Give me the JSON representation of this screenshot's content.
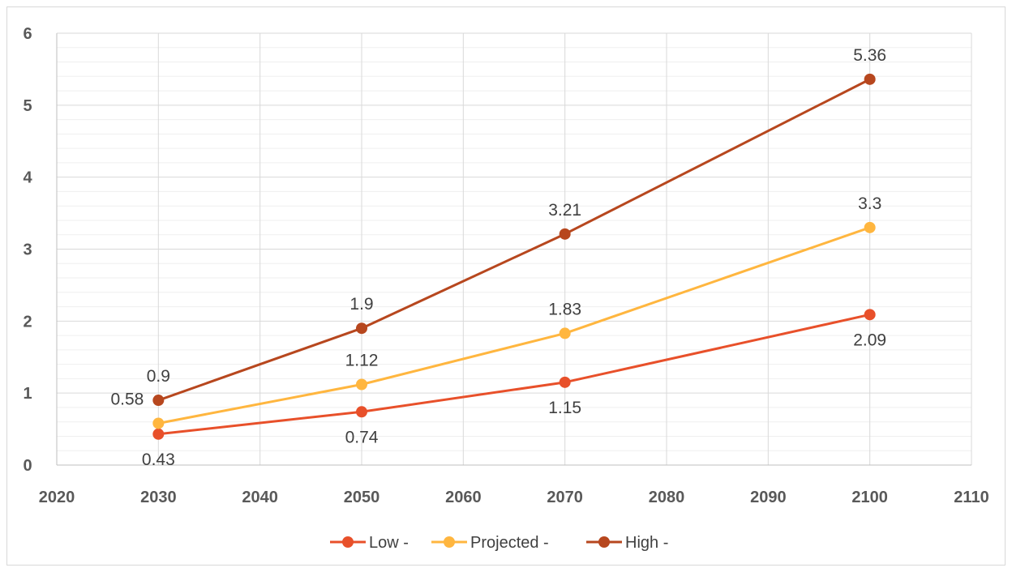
{
  "chart_data": {
    "type": "line",
    "title": "",
    "xlabel": "",
    "ylabel": "",
    "xlim": [
      2020,
      2110
    ],
    "ylim": [
      0,
      6
    ],
    "x_ticks": [
      2020,
      2030,
      2040,
      2050,
      2060,
      2070,
      2080,
      2090,
      2100,
      2110
    ],
    "y_ticks": [
      0,
      1,
      2,
      3,
      4,
      5,
      6
    ],
    "grid": "major and minor",
    "legend_position": "bottom",
    "x": [
      2030,
      2050,
      2070,
      2100
    ],
    "series": [
      {
        "name": "Low -",
        "color": "#e8502a",
        "values": [
          0.43,
          0.74,
          1.15,
          2.09
        ],
        "label_position": "below"
      },
      {
        "name": "Projected -",
        "color": "#ffb63f",
        "values": [
          0.58,
          1.12,
          1.83,
          3.3
        ],
        "label_position": "above"
      },
      {
        "name": "High -",
        "color": "#b7471e",
        "values": [
          0.9,
          1.9,
          3.21,
          5.36
        ],
        "label_position": "above"
      }
    ]
  }
}
